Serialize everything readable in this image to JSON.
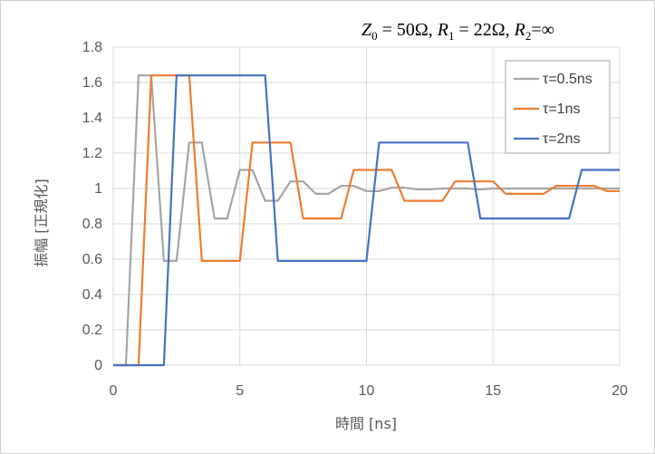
{
  "chart_data": {
    "type": "line",
    "title": "",
    "annotation": {
      "parts": [
        {
          "main": "Z",
          "sub": "0",
          "rest": " = 50Ω,  "
        },
        {
          "main": "R",
          "sub": "1",
          "rest": " = 22Ω,  "
        },
        {
          "main": "R",
          "sub": "2",
          "rest": "=∞"
        }
      ]
    },
    "xlabel": "時間 [ns]",
    "ylabel": "振幅 [正規化]",
    "xlim": [
      0,
      20
    ],
    "ylim": [
      0,
      1.8
    ],
    "xticks": [
      0,
      5,
      10,
      15,
      20
    ],
    "xtick_labels": [
      "0",
      "5",
      "10",
      "15",
      "20"
    ],
    "yticks": [
      0,
      0.2,
      0.4,
      0.6,
      0.8,
      1.0,
      1.2,
      1.4,
      1.6,
      1.8
    ],
    "ytick_labels": [
      "0",
      "0.2",
      "0.4",
      "0.6",
      "0.8",
      "1",
      "1.2",
      "1.4",
      "1.6",
      "1.8"
    ],
    "grid": true,
    "legend_position": "top-right",
    "series": [
      {
        "name": "τ=0.5ns",
        "color": "#a5a5a5",
        "x": [
          0,
          0.5,
          1.0,
          1.5,
          2.0,
          2.5,
          3.0,
          3.5,
          4.0,
          4.5,
          5.0,
          5.5,
          6.0,
          6.5,
          7.0,
          7.5,
          8.0,
          8.5,
          9.0,
          9.5,
          10.0,
          10.5,
          11.0,
          11.5,
          12.0,
          12.5,
          13.0,
          13.5,
          14.0,
          14.5,
          15.0,
          15.5,
          20.0
        ],
        "y": [
          0,
          0,
          1.64,
          1.64,
          0.59,
          0.59,
          1.26,
          1.26,
          0.83,
          0.83,
          1.105,
          1.105,
          0.93,
          0.93,
          1.04,
          1.04,
          0.97,
          0.97,
          1.015,
          1.015,
          0.985,
          0.985,
          1.005,
          1.005,
          0.995,
          0.995,
          1.0,
          1.0,
          1.0,
          0.995,
          1.0,
          1.0,
          1.0
        ]
      },
      {
        "name": "τ=1ns",
        "color": "#ed7d31",
        "x": [
          0,
          1.0,
          1.5,
          2.0,
          2.5,
          3.0,
          3.5,
          4.0,
          4.5,
          5.0,
          5.5,
          6.0,
          6.5,
          7.0,
          7.5,
          8.0,
          8.5,
          9.0,
          9.5,
          10.0,
          10.5,
          11.0,
          11.5,
          12.0,
          12.5,
          13.0,
          13.5,
          14.0,
          14.5,
          15.0,
          15.5,
          16.0,
          16.5,
          17.0,
          17.5,
          18.0,
          18.5,
          19.0,
          19.5,
          20.0
        ],
        "y": [
          0,
          0,
          1.64,
          1.64,
          1.64,
          1.64,
          0.59,
          0.59,
          0.59,
          0.59,
          1.26,
          1.26,
          1.26,
          1.26,
          0.83,
          0.83,
          0.83,
          0.83,
          1.105,
          1.105,
          1.105,
          1.105,
          0.93,
          0.93,
          0.93,
          0.93,
          1.04,
          1.04,
          1.04,
          1.04,
          0.97,
          0.97,
          0.97,
          0.97,
          1.015,
          1.015,
          1.015,
          1.015,
          0.985,
          0.985
        ]
      },
      {
        "name": "τ=2ns",
        "color": "#4472c4",
        "x": [
          0,
          2.0,
          2.5,
          6.0,
          6.5,
          10.0,
          10.5,
          14.0,
          14.5,
          18.0,
          18.5,
          20.0
        ],
        "y": [
          0,
          0,
          1.64,
          1.64,
          0.59,
          0.59,
          1.26,
          1.26,
          0.83,
          0.83,
          1.105,
          1.105
        ]
      }
    ]
  }
}
